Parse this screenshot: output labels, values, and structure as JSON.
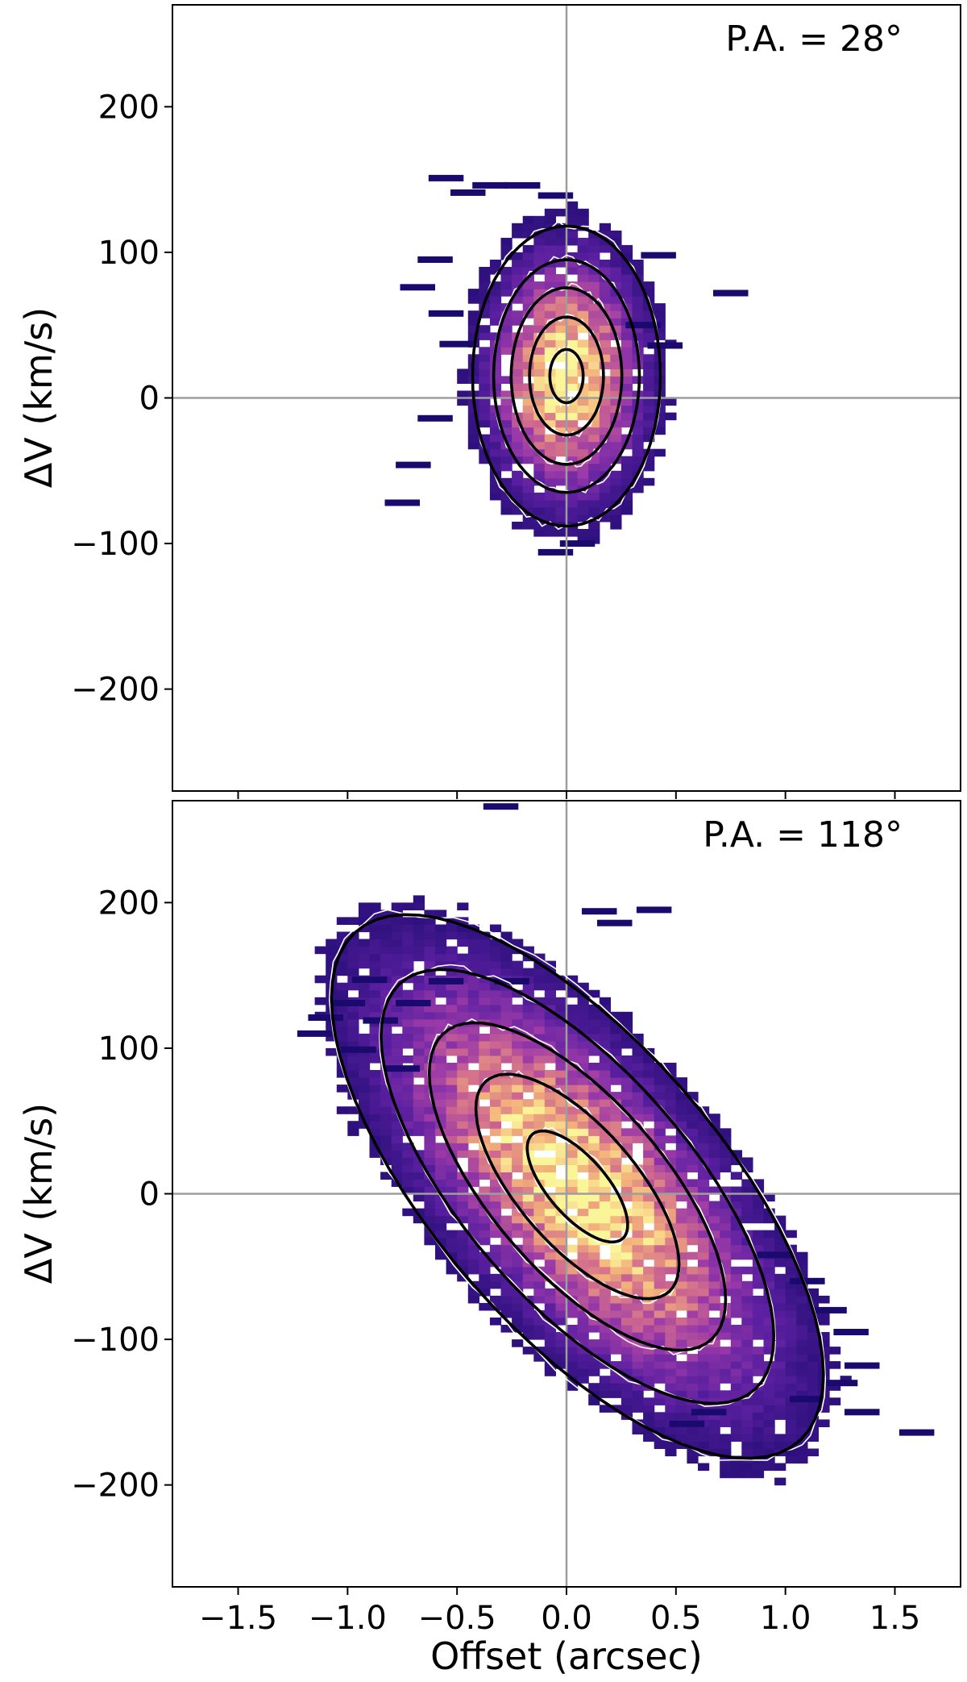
{
  "chart_data": [
    {
      "type": "heatmap",
      "title": "",
      "annotation": "P.A. = 28°",
      "xlabel": "",
      "ylabel": "ΔV (km/s)",
      "xlim": [
        -1.8,
        1.8
      ],
      "ylim": [
        -270,
        270
      ],
      "yticks": [
        200,
        100,
        0,
        -100,
        -200
      ],
      "ytick_labels": [
        "200",
        "100",
        "0",
        "−100",
        "−200"
      ],
      "show_xtick_labels": false,
      "reference_lines": {
        "x": 0,
        "y": 0
      },
      "colormap": [
        "#1a0a6e",
        "#5a1fa0",
        "#9b3aa8",
        "#d06a8e",
        "#f3b07a",
        "#fbf59a"
      ],
      "emission": {
        "center_x": 0.0,
        "center_v": 15,
        "v_gradient_per_arcsec": 0,
        "sigma_x": 0.2,
        "sigma_v": 48,
        "peak": 1.0
      },
      "contour_levels": [
        0.1,
        0.25,
        0.45,
        0.7,
        0.93
      ],
      "sparse_pixels": [
        [
          -0.55,
          151
        ],
        [
          -0.35,
          146
        ],
        [
          -0.2,
          146
        ],
        [
          -0.45,
          141
        ],
        [
          -0.05,
          139
        ],
        [
          -0.6,
          95
        ],
        [
          -0.68,
          76
        ],
        [
          -0.55,
          58
        ],
        [
          -0.5,
          37
        ],
        [
          0.42,
          98
        ],
        [
          0.75,
          72
        ],
        [
          0.35,
          50
        ],
        [
          0.45,
          36
        ],
        [
          -0.6,
          -14
        ],
        [
          -0.7,
          -46
        ],
        [
          -0.75,
          -72
        ],
        [
          0.05,
          -100
        ],
        [
          -0.05,
          -106
        ]
      ]
    },
    {
      "type": "heatmap",
      "title": "",
      "annotation": "P.A. = 118°",
      "xlabel": "Offset (arcsec)",
      "ylabel": "ΔV (km/s)",
      "xlim": [
        -1.8,
        1.8
      ],
      "ylim": [
        -270,
        270
      ],
      "xticks": [
        -1.5,
        -1.0,
        -0.5,
        0.0,
        0.5,
        1.0,
        1.5
      ],
      "xtick_labels": [
        "−1.5",
        "−1.0",
        "−0.5",
        "0.0",
        "0.5",
        "1.0",
        "1.5"
      ],
      "yticks": [
        200,
        100,
        0,
        -100,
        -200
      ],
      "ytick_labels": [
        "200",
        "100",
        "0",
        "−100",
        "−200"
      ],
      "show_xtick_labels": true,
      "reference_lines": {
        "x": 0,
        "y": 0
      },
      "colormap": [
        "#1a0a6e",
        "#5a1fa0",
        "#9b3aa8",
        "#d06a8e",
        "#f3b07a",
        "#fbf59a"
      ],
      "emission": {
        "center_x": 0.05,
        "center_v": 5,
        "v_gradient_per_arcsec": -115,
        "sigma_x": 0.5,
        "sigma_v": 60,
        "peak": 1.0
      },
      "contour_levels": [
        0.08,
        0.2,
        0.4,
        0.65,
        0.9
      ],
      "sparse_pixels": [
        [
          -0.3,
          266
        ],
        [
          0.15,
          194
        ],
        [
          0.4,
          195
        ],
        [
          0.22,
          186
        ],
        [
          -0.9,
          147
        ],
        [
          -0.55,
          146
        ],
        [
          -0.25,
          146
        ],
        [
          -1.0,
          131
        ],
        [
          -0.7,
          131
        ],
        [
          -1.1,
          121
        ],
        [
          -0.85,
          119
        ],
        [
          -1.15,
          110
        ],
        [
          -0.95,
          99
        ],
        [
          -0.75,
          86
        ],
        [
          0.95,
          -42
        ],
        [
          1.1,
          -60
        ],
        [
          1.2,
          -80
        ],
        [
          1.3,
          -95
        ],
        [
          1.35,
          -118
        ],
        [
          1.25,
          -130
        ],
        [
          1.1,
          -141
        ],
        [
          1.35,
          -150
        ],
        [
          1.6,
          -164
        ],
        [
          0.65,
          -150
        ],
        [
          0.55,
          -158
        ]
      ]
    }
  ]
}
